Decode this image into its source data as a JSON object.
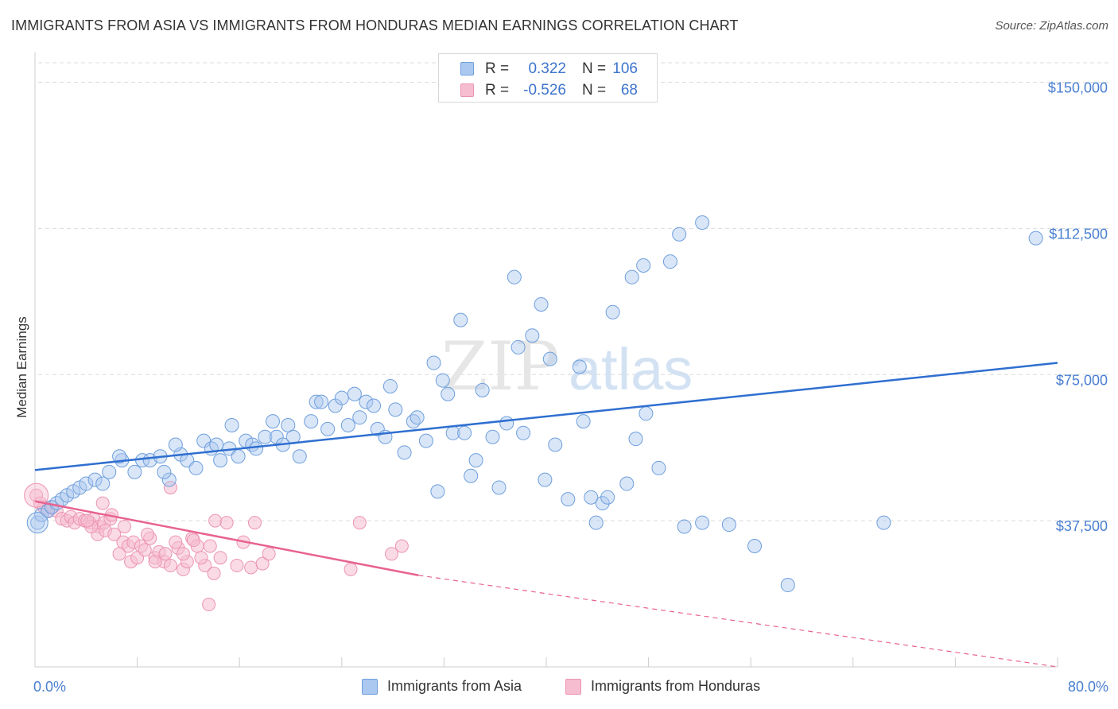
{
  "title": "IMMIGRANTS FROM ASIA VS IMMIGRANTS FROM HONDURAS MEDIAN EARNINGS CORRELATION CHART",
  "source": "Source: ZipAtlas.com",
  "watermark": {
    "zip": "ZIP",
    "atlas": "atlas"
  },
  "colors": {
    "asia_fill": "#aac8f0",
    "asia_stroke": "#6f9fdc",
    "asia_line": "#2f6fd0",
    "honduras_fill": "#f6bdd0",
    "honduras_stroke": "#ec94b2",
    "honduras_line": "#e8638f",
    "grid": "#dcdcdc",
    "tick_text": "#4a7fd0"
  },
  "stats": [
    {
      "r_label": "R =",
      "r_value": "0.322",
      "n_label": "N =",
      "n_value": "106",
      "series": "asia"
    },
    {
      "r_label": "R =",
      "r_value": "-0.526",
      "n_label": "N =",
      "n_value": "68",
      "series": "honduras"
    }
  ],
  "legend": [
    {
      "label": "Immigrants from Asia",
      "series": "asia"
    },
    {
      "label": "Immigrants from Honduras",
      "series": "honduras"
    }
  ],
  "chart_data": {
    "type": "scatter",
    "title": "IMMIGRANTS FROM ASIA VS IMMIGRANTS FROM HONDURAS MEDIAN EARNINGS CORRELATION CHART",
    "xlabel": "",
    "ylabel": "Median Earnings",
    "xlim": [
      0,
      80
    ],
    "ylim": [
      0,
      155000
    ],
    "x_tick_labels": [
      "0.0%",
      "80.0%"
    ],
    "y_ticks": [
      37500,
      75000,
      112500,
      150000
    ],
    "y_tick_labels": [
      "$37,500",
      "$75,000",
      "$112,500",
      "$150,000"
    ],
    "grid": "horizontal dashed",
    "legend_position": "bottom-center",
    "series": [
      {
        "name": "Immigrants from Asia",
        "color": "#6f9fdc",
        "trend": {
          "x": [
            0,
            80
          ],
          "y": [
            50500,
            78000
          ],
          "style": "solid"
        },
        "points": [
          [
            0.2,
            37000
          ],
          [
            0.5,
            39000
          ],
          [
            1.0,
            40000
          ],
          [
            1.3,
            41000
          ],
          [
            1.7,
            42000
          ],
          [
            2.1,
            43000
          ],
          [
            2.5,
            44000
          ],
          [
            3.0,
            45000
          ],
          [
            3.5,
            46000
          ],
          [
            4.0,
            47000
          ],
          [
            4.7,
            48000
          ],
          [
            5.3,
            47000
          ],
          [
            5.8,
            50000
          ],
          [
            6.8,
            53000
          ],
          [
            6.6,
            54000
          ],
          [
            7.8,
            50000
          ],
          [
            8.4,
            53000
          ],
          [
            9.0,
            53000
          ],
          [
            9.8,
            54000
          ],
          [
            10.5,
            48000
          ],
          [
            10.1,
            50000
          ],
          [
            11.4,
            54500
          ],
          [
            11.0,
            57000
          ],
          [
            11.9,
            53000
          ],
          [
            12.6,
            51000
          ],
          [
            13.2,
            58000
          ],
          [
            13.8,
            56000
          ],
          [
            14.5,
            53000
          ],
          [
            14.2,
            57000
          ],
          [
            15.2,
            56000
          ],
          [
            15.9,
            54000
          ],
          [
            15.4,
            62000
          ],
          [
            16.5,
            58000
          ],
          [
            17.0,
            57000
          ],
          [
            17.3,
            56000
          ],
          [
            18.0,
            59000
          ],
          [
            18.6,
            63000
          ],
          [
            18.9,
            59000
          ],
          [
            19.4,
            57000
          ],
          [
            19.8,
            62000
          ],
          [
            20.2,
            59000
          ],
          [
            20.7,
            54000
          ],
          [
            21.6,
            63000
          ],
          [
            22.0,
            68000
          ],
          [
            22.4,
            68000
          ],
          [
            22.9,
            61000
          ],
          [
            23.5,
            67000
          ],
          [
            24.0,
            69000
          ],
          [
            24.5,
            62000
          ],
          [
            25.0,
            70000
          ],
          [
            25.4,
            64000
          ],
          [
            25.9,
            68000
          ],
          [
            26.5,
            67000
          ],
          [
            26.8,
            61000
          ],
          [
            27.4,
            59000
          ],
          [
            27.8,
            72000
          ],
          [
            28.2,
            66000
          ],
          [
            28.9,
            55000
          ],
          [
            29.6,
            63000
          ],
          [
            29.9,
            64000
          ],
          [
            30.6,
            58000
          ],
          [
            31.2,
            78000
          ],
          [
            31.5,
            45000
          ],
          [
            31.9,
            73500
          ],
          [
            32.3,
            70000
          ],
          [
            32.7,
            60000
          ],
          [
            33.3,
            89000
          ],
          [
            33.6,
            60000
          ],
          [
            34.1,
            49000
          ],
          [
            34.5,
            53000
          ],
          [
            35.0,
            71000
          ],
          [
            35.8,
            59000
          ],
          [
            36.3,
            46000
          ],
          [
            36.9,
            62500
          ],
          [
            37.5,
            100000
          ],
          [
            37.8,
            82000
          ],
          [
            38.2,
            60000
          ],
          [
            38.9,
            85000
          ],
          [
            39.6,
            93000
          ],
          [
            39.9,
            48000
          ],
          [
            40.3,
            79000
          ],
          [
            40.7,
            57000
          ],
          [
            41.7,
            43000
          ],
          [
            42.6,
            77000
          ],
          [
            42.9,
            63000
          ],
          [
            43.5,
            43500
          ],
          [
            43.9,
            37000
          ],
          [
            44.4,
            42000
          ],
          [
            44.8,
            43500
          ],
          [
            45.2,
            91000
          ],
          [
            46.3,
            47000
          ],
          [
            47.0,
            58500
          ],
          [
            46.7,
            100000
          ],
          [
            47.8,
            65000
          ],
          [
            47.6,
            103000
          ],
          [
            48.8,
            51000
          ],
          [
            49.7,
            104000
          ],
          [
            50.4,
            111000
          ],
          [
            50.8,
            36000
          ],
          [
            52.2,
            114000
          ],
          [
            52.2,
            37000
          ],
          [
            54.3,
            36500
          ],
          [
            56.3,
            31000
          ],
          [
            58.9,
            21000
          ],
          [
            66.4,
            37000
          ],
          [
            78.3,
            110000
          ]
        ]
      },
      {
        "name": "Immigrants from Honduras",
        "color": "#ec94b2",
        "trend": {
          "x": [
            0,
            30
          ],
          "y": [
            42500,
            23500
          ],
          "style": "solid",
          "extension": {
            "x": [
              30,
              80
            ],
            "y": [
              23500,
              0
            ],
            "style": "dashed"
          }
        },
        "points": [
          [
            0.1,
            44000
          ],
          [
            0.4,
            42000
          ],
          [
            0.7,
            41000
          ],
          [
            1.0,
            40000
          ],
          [
            1.4,
            41000
          ],
          [
            1.7,
            40000
          ],
          [
            2.1,
            38000
          ],
          [
            2.5,
            37500
          ],
          [
            2.8,
            38500
          ],
          [
            3.1,
            37000
          ],
          [
            3.5,
            38000
          ],
          [
            3.9,
            37500
          ],
          [
            4.3,
            37000
          ],
          [
            4.6,
            38000
          ],
          [
            5.0,
            36000
          ],
          [
            5.4,
            37000
          ],
          [
            4.9,
            34000
          ],
          [
            5.9,
            38000
          ],
          [
            5.5,
            35000
          ],
          [
            6.2,
            34000
          ],
          [
            6.6,
            29000
          ],
          [
            7.0,
            36000
          ],
          [
            6.9,
            32000
          ],
          [
            7.3,
            31000
          ],
          [
            7.7,
            32000
          ],
          [
            7.5,
            27000
          ],
          [
            8.0,
            28000
          ],
          [
            8.3,
            31000
          ],
          [
            8.6,
            30000
          ],
          [
            9.0,
            33000
          ],
          [
            8.8,
            34000
          ],
          [
            9.4,
            28000
          ],
          [
            9.7,
            29500
          ],
          [
            10.1,
            27000
          ],
          [
            10.2,
            29000
          ],
          [
            10.6,
            26000
          ],
          [
            11.2,
            30500
          ],
          [
            11.6,
            25000
          ],
          [
            11.9,
            27000
          ],
          [
            12.3,
            33000
          ],
          [
            12.7,
            31000
          ],
          [
            13.3,
            26000
          ],
          [
            13.7,
            31000
          ],
          [
            14.1,
            37500
          ],
          [
            14.5,
            28000
          ],
          [
            15.0,
            37000
          ],
          [
            15.8,
            26000
          ],
          [
            16.3,
            32000
          ],
          [
            16.9,
            25500
          ],
          [
            17.2,
            37000
          ],
          [
            17.8,
            26500
          ],
          [
            18.3,
            29000
          ],
          [
            11.0,
            32000
          ],
          [
            11.6,
            29000
          ],
          [
            12.4,
            32500
          ],
          [
            13.0,
            28000
          ],
          [
            14.0,
            24000
          ],
          [
            9.4,
            27000
          ],
          [
            4.4,
            36000
          ],
          [
            4.1,
            37500
          ],
          [
            5.3,
            42000
          ],
          [
            10.6,
            46000
          ],
          [
            13.6,
            16000
          ],
          [
            24.7,
            25000
          ],
          [
            25.4,
            37000
          ],
          [
            27.9,
            29000
          ],
          [
            28.7,
            31000
          ],
          [
            6.0,
            39000
          ]
        ]
      }
    ]
  }
}
